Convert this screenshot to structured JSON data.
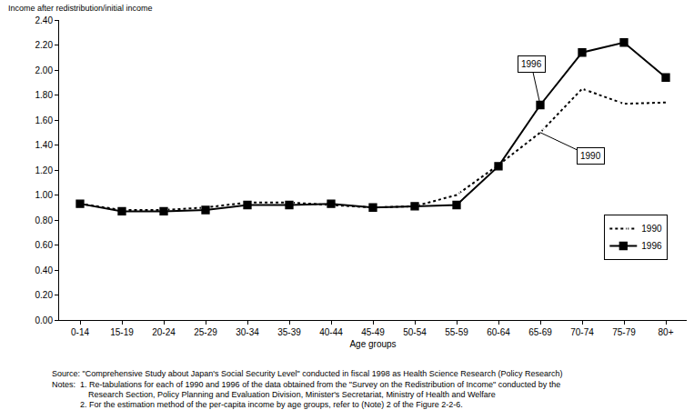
{
  "chart_data": {
    "type": "line",
    "y_label": "Income after redistribution/initial income",
    "x_label": "Age groups",
    "categories": [
      "0-14",
      "15-19",
      "20-24",
      "25-29",
      "30-34",
      "35-39",
      "40-44",
      "45-49",
      "50-54",
      "55-59",
      "60-64",
      "65-69",
      "70-74",
      "75-79",
      "80+"
    ],
    "series": [
      {
        "name": "1990",
        "color": "#000000",
        "marker": "circle-open",
        "line_style": "dot",
        "values": [
          0.93,
          0.88,
          0.88,
          0.9,
          0.94,
          0.94,
          0.92,
          0.9,
          0.91,
          1.0,
          1.24,
          1.5,
          1.85,
          1.73,
          1.74
        ]
      },
      {
        "name": "1996",
        "color": "#000000",
        "marker": "square",
        "line_style": "solid",
        "values": [
          0.93,
          0.87,
          0.87,
          0.88,
          0.92,
          0.92,
          0.93,
          0.9,
          0.91,
          0.92,
          1.23,
          1.72,
          2.14,
          2.22,
          1.94
        ]
      }
    ],
    "annotations": [
      {
        "text": "1996",
        "series": "1996",
        "category": "65-69"
      },
      {
        "text": "1990",
        "series": "1990",
        "category": "65-69"
      }
    ],
    "ylim": [
      0,
      2.4
    ],
    "yticks": [
      {
        "value": 0,
        "label": "0.00"
      },
      {
        "value": 0.2,
        "label": "0.20"
      },
      {
        "value": 0.4,
        "label": "0.40"
      },
      {
        "value": 0.6,
        "label": "0.60"
      },
      {
        "value": 0.8,
        "label": "0.80"
      },
      {
        "value": 1.0,
        "label": "1.00"
      },
      {
        "value": 1.2,
        "label": "1.20"
      },
      {
        "value": 1.4,
        "label": "1.40"
      },
      {
        "value": 1.6,
        "label": "1.60"
      },
      {
        "value": 1.8,
        "label": "1.80"
      },
      {
        "value": 2.0,
        "label": "2.00"
      },
      {
        "value": 2.2,
        "label": "2.20"
      },
      {
        "value": 2.4,
        "label": "2.40"
      }
    ],
    "grid": false,
    "legend": "lower right",
    "source": "Source: \"Comprehensive Study about Japan's Social Security Level\" conducted in fiscal 1998 as Health Science Research (Policy Research)",
    "notes_label": "Notes:",
    "notes": [
      "1. Re-tabulations for each of 1990 and 1996 of the data obtained from the \"Survey on the Redistribution of Income\" conducted by the",
      "Research Section, Policy Planning and Evaluation Division, Minister's Secretariat, Ministry of Health and Welfare",
      "2. For the estimation method of the per-capita income by age groups, refer to (Note) 2 of the Figure 2-2-6."
    ]
  }
}
